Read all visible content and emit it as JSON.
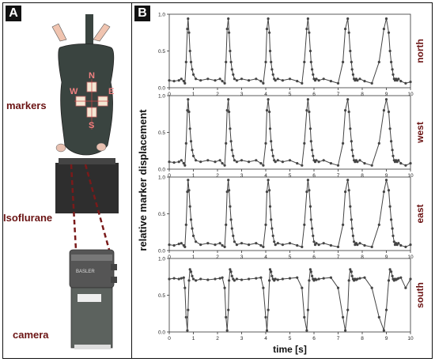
{
  "panels": {
    "a": {
      "letter": "A",
      "labels": {
        "markers": "markers",
        "isoflurane": "Isoflurane",
        "camera": "camera"
      },
      "marker_letters": {
        "n": "N",
        "w": "W",
        "e": "E",
        "s": "S"
      },
      "camera_brand": "BASLER"
    },
    "b": {
      "letter": "B"
    }
  },
  "colors": {
    "label_red": "#6b1414",
    "mouse_body": "#3a4440",
    "trace": "#444444",
    "panel_border": "#111111"
  },
  "chart_data": {
    "type": "line",
    "xlabel": "time [s]",
    "ylabel": "relative marker displacement",
    "xlim": [
      0,
      10
    ],
    "x_ticks": [
      0,
      1,
      2,
      3,
      4,
      5,
      6,
      7,
      8,
      9,
      10
    ],
    "ylim": [
      0,
      1
    ],
    "y_ticks": [
      "0.0",
      "0.5",
      "1.0"
    ],
    "subplots": [
      {
        "name": "north",
        "x": [
          0,
          0.2,
          0.4,
          0.5,
          0.6,
          0.65,
          0.7,
          0.75,
          0.78,
          0.82,
          0.86,
          0.9,
          0.95,
          1.0,
          1.1,
          1.3,
          1.6,
          1.9,
          2.1,
          2.2,
          2.3,
          2.35,
          2.4,
          2.45,
          2.48,
          2.52,
          2.56,
          2.6,
          2.65,
          2.7,
          2.8,
          3.0,
          3.3,
          3.6,
          3.8,
          3.9,
          4.0,
          4.05,
          4.1,
          4.15,
          4.18,
          4.22,
          4.26,
          4.3,
          4.35,
          4.4,
          4.5,
          4.7,
          5.0,
          5.3,
          5.5,
          5.6,
          5.7,
          5.75,
          5.8,
          5.85,
          5.88,
          5.92,
          5.96,
          6.0,
          6.05,
          6.1,
          6.2,
          6.4,
          6.7,
          7.0,
          7.2,
          7.3,
          7.4,
          7.45,
          7.5,
          7.55,
          7.58,
          7.62,
          7.66,
          7.7,
          7.75,
          7.8,
          7.9,
          8.1,
          8.4,
          8.7,
          8.9,
          9.0,
          9.1,
          9.15,
          9.2,
          9.25,
          9.28,
          9.32,
          9.36,
          9.4,
          9.45,
          9.5,
          9.6,
          9.8,
          10.0
        ],
        "y": [
          0.1,
          0.09,
          0.1,
          0.12,
          0.09,
          0.06,
          0.35,
          0.8,
          0.94,
          0.75,
          0.5,
          0.35,
          0.25,
          0.18,
          0.12,
          0.1,
          0.12,
          0.1,
          0.12,
          0.09,
          0.06,
          0.35,
          0.8,
          0.94,
          0.75,
          0.5,
          0.35,
          0.25,
          0.18,
          0.12,
          0.1,
          0.12,
          0.1,
          0.12,
          0.09,
          0.06,
          0.35,
          0.8,
          0.94,
          0.75,
          0.5,
          0.35,
          0.25,
          0.18,
          0.12,
          0.1,
          0.12,
          0.1,
          0.12,
          0.09,
          0.06,
          0.35,
          0.8,
          0.94,
          0.75,
          0.5,
          0.35,
          0.25,
          0.18,
          0.12,
          0.1,
          0.12,
          0.1,
          0.12,
          0.09,
          0.06,
          0.35,
          0.8,
          0.94,
          0.75,
          0.5,
          0.35,
          0.25,
          0.18,
          0.12,
          0.1,
          0.12,
          0.1,
          0.12,
          0.09,
          0.06,
          0.35,
          0.8,
          0.94,
          0.75,
          0.5,
          0.35,
          0.25,
          0.18,
          0.12,
          0.1,
          0.12,
          0.1,
          0.12,
          0.09,
          0.06,
          0.08
        ]
      },
      {
        "name": "west",
        "x": [
          0,
          0.2,
          0.4,
          0.5,
          0.6,
          0.65,
          0.7,
          0.75,
          0.78,
          0.82,
          0.86,
          0.9,
          0.95,
          1.0,
          1.1,
          1.3,
          1.6,
          1.9,
          2.1,
          2.2,
          2.3,
          2.35,
          2.4,
          2.45,
          2.48,
          2.52,
          2.56,
          2.6,
          2.65,
          2.7,
          2.8,
          3.0,
          3.3,
          3.6,
          3.8,
          3.9,
          4.0,
          4.05,
          4.1,
          4.15,
          4.18,
          4.22,
          4.26,
          4.3,
          4.35,
          4.4,
          4.5,
          4.7,
          5.0,
          5.3,
          5.5,
          5.6,
          5.7,
          5.75,
          5.8,
          5.85,
          5.88,
          5.92,
          5.96,
          6.0,
          6.05,
          6.1,
          6.2,
          6.4,
          6.7,
          7.0,
          7.2,
          7.3,
          7.4,
          7.45,
          7.5,
          7.55,
          7.58,
          7.62,
          7.66,
          7.7,
          7.75,
          7.8,
          7.9,
          8.1,
          8.4,
          8.7,
          8.9,
          9.0,
          9.1,
          9.15,
          9.2,
          9.25,
          9.28,
          9.32,
          9.36,
          9.4,
          9.45,
          9.5,
          9.6,
          9.8,
          10.0
        ],
        "y": [
          0.1,
          0.09,
          0.1,
          0.12,
          0.08,
          0.05,
          0.35,
          0.8,
          0.95,
          0.78,
          0.55,
          0.38,
          0.26,
          0.18,
          0.12,
          0.1,
          0.12,
          0.1,
          0.12,
          0.08,
          0.05,
          0.35,
          0.8,
          0.95,
          0.78,
          0.55,
          0.38,
          0.26,
          0.18,
          0.12,
          0.1,
          0.12,
          0.1,
          0.12,
          0.08,
          0.05,
          0.35,
          0.8,
          0.95,
          0.78,
          0.55,
          0.38,
          0.26,
          0.18,
          0.12,
          0.1,
          0.12,
          0.1,
          0.12,
          0.08,
          0.05,
          0.35,
          0.8,
          0.95,
          0.78,
          0.55,
          0.38,
          0.26,
          0.18,
          0.12,
          0.1,
          0.12,
          0.1,
          0.12,
          0.08,
          0.05,
          0.35,
          0.8,
          0.95,
          0.78,
          0.55,
          0.38,
          0.26,
          0.18,
          0.12,
          0.1,
          0.12,
          0.1,
          0.12,
          0.08,
          0.05,
          0.35,
          0.8,
          0.95,
          0.78,
          0.55,
          0.38,
          0.26,
          0.18,
          0.12,
          0.1,
          0.12,
          0.1,
          0.12,
          0.08,
          0.05,
          0.08
        ]
      },
      {
        "name": "east",
        "x": [
          0,
          0.2,
          0.4,
          0.5,
          0.6,
          0.65,
          0.7,
          0.75,
          0.78,
          0.82,
          0.86,
          0.9,
          0.95,
          1.0,
          1.1,
          1.3,
          1.6,
          1.9,
          2.1,
          2.2,
          2.3,
          2.35,
          2.4,
          2.45,
          2.48,
          2.52,
          2.56,
          2.6,
          2.65,
          2.7,
          2.8,
          3.0,
          3.3,
          3.6,
          3.8,
          3.9,
          4.0,
          4.05,
          4.1,
          4.15,
          4.18,
          4.22,
          4.26,
          4.3,
          4.35,
          4.4,
          4.5,
          4.7,
          5.0,
          5.3,
          5.5,
          5.6,
          5.7,
          5.75,
          5.8,
          5.85,
          5.88,
          5.92,
          5.96,
          6.0,
          6.05,
          6.1,
          6.2,
          6.4,
          6.7,
          7.0,
          7.2,
          7.3,
          7.4,
          7.45,
          7.5,
          7.55,
          7.58,
          7.62,
          7.66,
          7.7,
          7.75,
          7.8,
          7.9,
          8.1,
          8.4,
          8.7,
          8.9,
          9.0,
          9.1,
          9.15,
          9.2,
          9.25,
          9.28,
          9.32,
          9.36,
          9.4,
          9.45,
          9.5,
          9.6,
          9.8,
          10.0
        ],
        "y": [
          0.08,
          0.07,
          0.09,
          0.1,
          0.07,
          0.05,
          0.35,
          0.8,
          0.96,
          0.82,
          0.6,
          0.42,
          0.3,
          0.2,
          0.12,
          0.08,
          0.1,
          0.08,
          0.1,
          0.07,
          0.05,
          0.35,
          0.8,
          0.96,
          0.82,
          0.6,
          0.42,
          0.3,
          0.2,
          0.12,
          0.08,
          0.1,
          0.08,
          0.1,
          0.07,
          0.05,
          0.35,
          0.8,
          0.96,
          0.82,
          0.6,
          0.42,
          0.3,
          0.2,
          0.12,
          0.08,
          0.1,
          0.08,
          0.1,
          0.07,
          0.05,
          0.35,
          0.8,
          0.96,
          0.82,
          0.6,
          0.42,
          0.3,
          0.2,
          0.12,
          0.08,
          0.1,
          0.08,
          0.1,
          0.07,
          0.05,
          0.35,
          0.8,
          0.96,
          0.82,
          0.6,
          0.42,
          0.3,
          0.2,
          0.12,
          0.08,
          0.1,
          0.08,
          0.1,
          0.07,
          0.05,
          0.35,
          0.8,
          0.96,
          0.82,
          0.6,
          0.42,
          0.3,
          0.2,
          0.12,
          0.08,
          0.1,
          0.08,
          0.1,
          0.07,
          0.05,
          0.08
        ]
      },
      {
        "name": "south",
        "x": [
          0,
          0.2,
          0.4,
          0.5,
          0.6,
          0.65,
          0.7,
          0.75,
          0.78,
          0.82,
          0.86,
          0.9,
          0.95,
          1.0,
          1.1,
          1.3,
          1.6,
          1.9,
          2.1,
          2.2,
          2.3,
          2.35,
          2.4,
          2.45,
          2.48,
          2.52,
          2.56,
          2.6,
          2.65,
          2.7,
          2.8,
          3.0,
          3.3,
          3.6,
          3.8,
          3.9,
          4.0,
          4.05,
          4.1,
          4.15,
          4.18,
          4.22,
          4.26,
          4.3,
          4.35,
          4.4,
          4.5,
          4.7,
          5.0,
          5.3,
          5.5,
          5.6,
          5.7,
          5.75,
          5.8,
          5.85,
          5.88,
          5.92,
          5.96,
          6.0,
          6.05,
          6.1,
          6.2,
          6.4,
          6.7,
          7.0,
          7.2,
          7.3,
          7.4,
          7.45,
          7.5,
          7.55,
          7.58,
          7.62,
          7.66,
          7.7,
          7.75,
          7.8,
          7.9,
          8.1,
          8.4,
          8.7,
          8.9,
          9.0,
          9.1,
          9.15,
          9.2,
          9.25,
          9.28,
          9.32,
          9.36,
          9.4,
          9.45,
          9.5,
          9.6,
          9.8,
          10.0
        ],
        "y": [
          0.72,
          0.73,
          0.72,
          0.73,
          0.74,
          0.6,
          0.2,
          0.02,
          0.3,
          0.7,
          0.85,
          0.82,
          0.76,
          0.72,
          0.7,
          0.72,
          0.71,
          0.72,
          0.73,
          0.74,
          0.6,
          0.2,
          0.02,
          0.3,
          0.7,
          0.85,
          0.82,
          0.76,
          0.72,
          0.7,
          0.72,
          0.71,
          0.72,
          0.73,
          0.74,
          0.6,
          0.2,
          0.02,
          0.3,
          0.7,
          0.85,
          0.82,
          0.76,
          0.72,
          0.7,
          0.72,
          0.71,
          0.72,
          0.73,
          0.74,
          0.6,
          0.2,
          0.02,
          0.3,
          0.7,
          0.85,
          0.82,
          0.76,
          0.72,
          0.7,
          0.72,
          0.71,
          0.72,
          0.73,
          0.74,
          0.6,
          0.2,
          0.02,
          0.3,
          0.7,
          0.85,
          0.82,
          0.76,
          0.72,
          0.7,
          0.72,
          0.71,
          0.72,
          0.73,
          0.74,
          0.6,
          0.2,
          0.02,
          0.3,
          0.7,
          0.85,
          0.82,
          0.76,
          0.72,
          0.7,
          0.72,
          0.71,
          0.72,
          0.73,
          0.74,
          0.6,
          0.72
        ]
      }
    ]
  }
}
